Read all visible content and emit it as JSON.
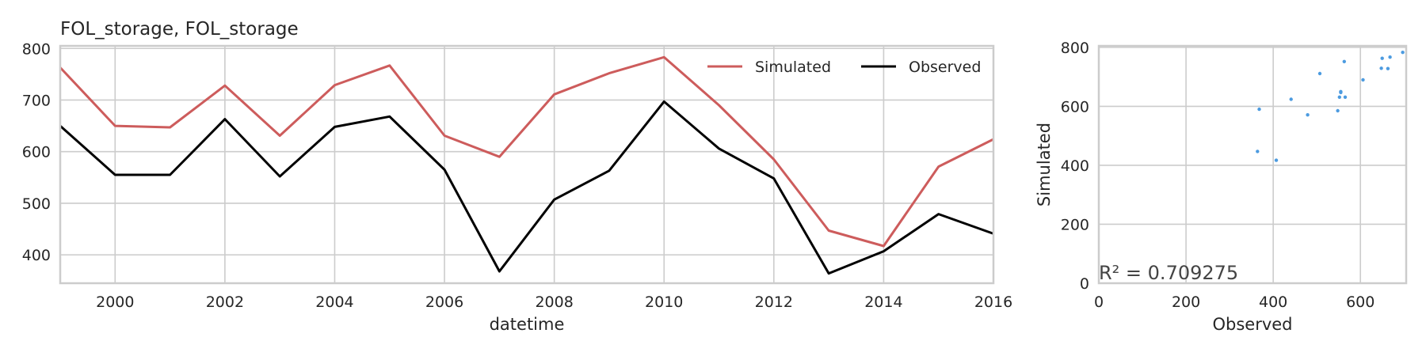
{
  "chart_data": [
    {
      "type": "line",
      "title": "FOL_storage, FOL_storage",
      "xlabel": "datetime",
      "ylabel": "",
      "x": [
        1999,
        2000,
        2001,
        2002,
        2003,
        2004,
        2005,
        2006,
        2007,
        2008,
        2009,
        2010,
        2011,
        2012,
        2013,
        2014,
        2015,
        2016
      ],
      "xlim": [
        1999,
        2016
      ],
      "ylim": [
        345,
        805
      ],
      "xticks": [
        2000,
        2002,
        2004,
        2006,
        2008,
        2010,
        2012,
        2014,
        2016
      ],
      "yticks": [
        400,
        500,
        600,
        700,
        800
      ],
      "grid": true,
      "legend": "top-right",
      "series": [
        {
          "name": "Simulated",
          "color": "#cd5c5c",
          "values": [
            763,
            650,
            647,
            728,
            631,
            729,
            767,
            631,
            590,
            711,
            752,
            783,
            690,
            585,
            447,
            417,
            571,
            624
          ]
        },
        {
          "name": "Observed",
          "color": "#000000",
          "values": [
            650,
            555,
            555,
            663,
            552,
            648,
            668,
            565,
            368,
            507,
            563,
            697,
            606,
            548,
            364,
            407,
            479,
            441
          ]
        }
      ]
    },
    {
      "type": "scatter",
      "title": "",
      "xlabel": "Observed",
      "ylabel": "Simulated",
      "xlim": [
        0,
        705
      ],
      "ylim": [
        0,
        805
      ],
      "xticks": [
        0,
        200,
        400,
        600
      ],
      "yticks": [
        0,
        200,
        400,
        600,
        800
      ],
      "grid": true,
      "color": "#4c9be0",
      "annotation": "R² = 0.709275",
      "points": [
        [
          650,
          763
        ],
        [
          555,
          650
        ],
        [
          555,
          647
        ],
        [
          663,
          728
        ],
        [
          552,
          631
        ],
        [
          648,
          729
        ],
        [
          668,
          767
        ],
        [
          565,
          631
        ],
        [
          368,
          590
        ],
        [
          507,
          711
        ],
        [
          563,
          752
        ],
        [
          697,
          783
        ],
        [
          606,
          690
        ],
        [
          548,
          585
        ],
        [
          364,
          447
        ],
        [
          407,
          417
        ],
        [
          479,
          571
        ],
        [
          441,
          624
        ]
      ]
    }
  ]
}
